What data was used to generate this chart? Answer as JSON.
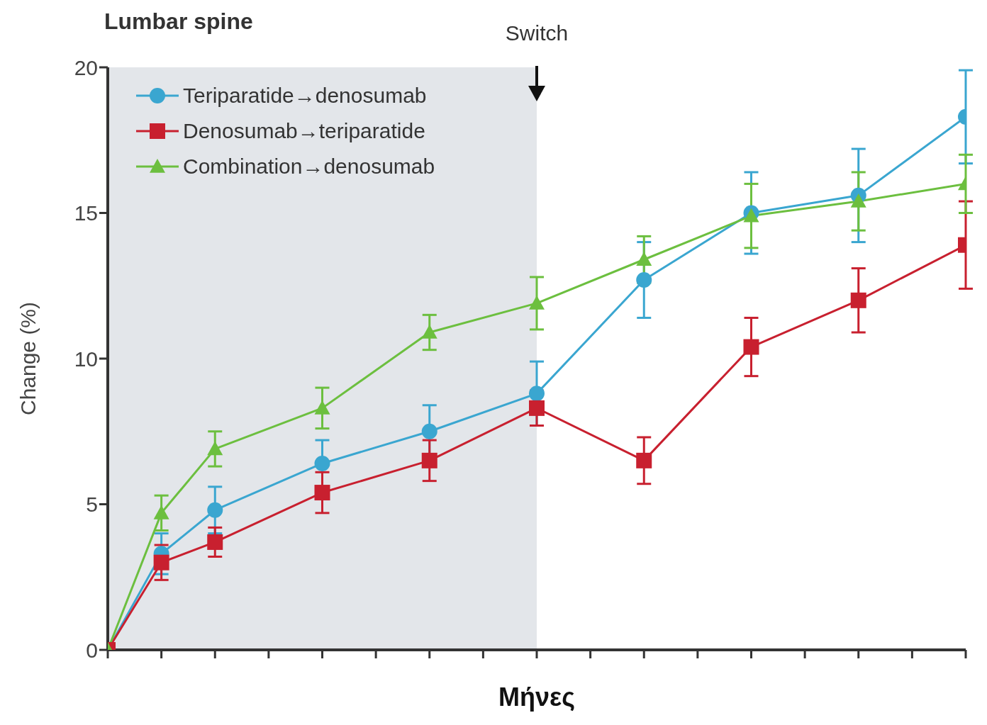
{
  "chart_data": {
    "type": "line",
    "title": "Lumbar spine",
    "xlabel": "Μήνες",
    "ylabel": "Change (%)",
    "categories": [
      null,
      null,
      null,
      null,
      null,
      null,
      null,
      null,
      null,
      null,
      null,
      null,
      null,
      null,
      null,
      null,
      null
    ],
    "series": [
      {
        "name": "Teriparatide→denosumab",
        "color": "#3aa6d0",
        "marker": "circle",
        "values": [
          0,
          3.3,
          4.8,
          null,
          6.4,
          null,
          7.5,
          null,
          8.8,
          null,
          12.7,
          null,
          15.0,
          null,
          15.6,
          null,
          18.3
        ],
        "errors": [
          null,
          0.7,
          0.8,
          null,
          0.8,
          null,
          0.9,
          null,
          1.1,
          null,
          1.3,
          null,
          1.4,
          null,
          1.6,
          null,
          1.6
        ]
      },
      {
        "name": "Denosumab→teriparatide",
        "color": "#c8202f",
        "marker": "square",
        "values": [
          0,
          3.0,
          3.7,
          null,
          5.4,
          null,
          6.5,
          null,
          8.3,
          null,
          6.5,
          null,
          10.4,
          null,
          12.0,
          null,
          13.9
        ],
        "errors": [
          null,
          0.6,
          0.5,
          null,
          0.7,
          null,
          0.7,
          null,
          0.6,
          null,
          0.8,
          null,
          1.0,
          null,
          1.1,
          null,
          1.5
        ]
      },
      {
        "name": "Combination→denosumab",
        "color": "#6cbf3f",
        "marker": "triangle",
        "values": [
          0,
          4.7,
          6.9,
          null,
          8.3,
          null,
          10.9,
          null,
          11.9,
          null,
          13.4,
          null,
          14.9,
          null,
          15.4,
          null,
          16.0
        ],
        "errors": [
          null,
          0.6,
          0.6,
          null,
          0.7,
          null,
          0.6,
          null,
          0.9,
          null,
          0.8,
          null,
          1.1,
          null,
          1.0,
          null,
          1.0
        ]
      }
    ],
    "ylim": [
      0,
      20
    ],
    "yticks": [
      0,
      5,
      10,
      15,
      20
    ],
    "grid": false,
    "legend": "top left",
    "annotations": [
      "Switch"
    ]
  }
}
